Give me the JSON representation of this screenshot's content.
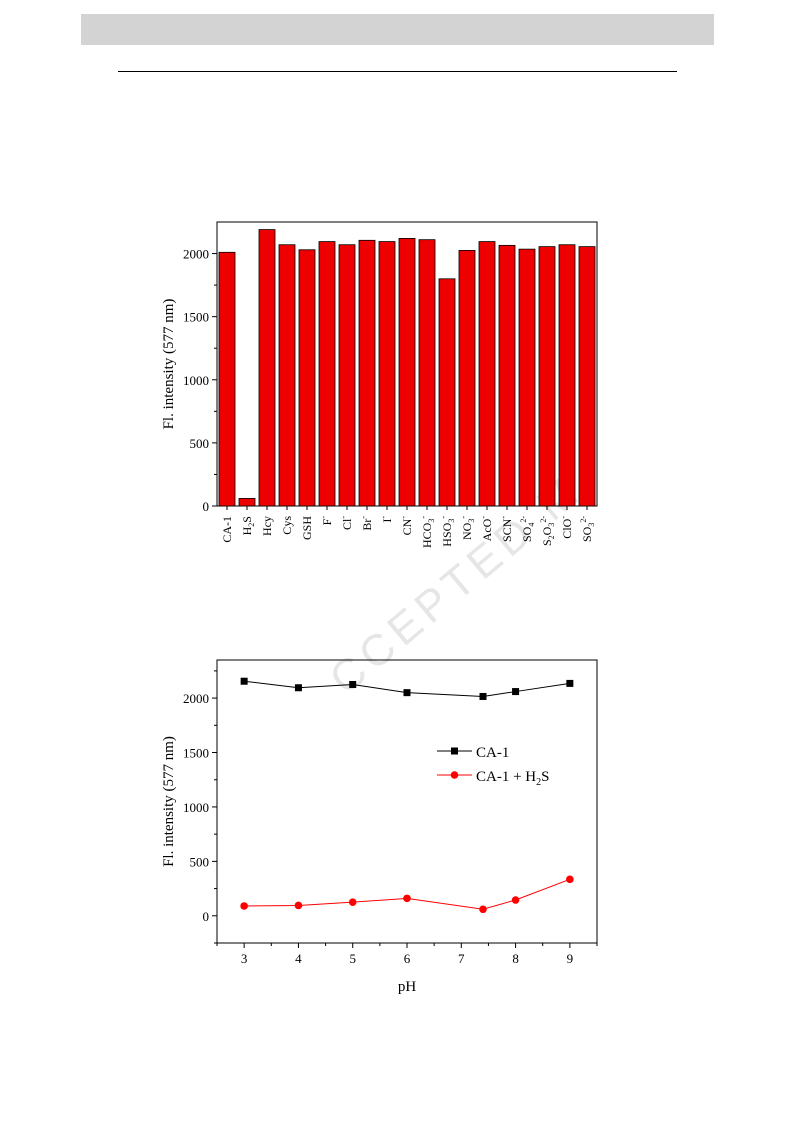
{
  "watermark": "CCEPTED M",
  "chart_data": [
    {
      "type": "bar",
      "ylabel": "Fl. intensity (577 nm)",
      "ylim": [
        0,
        2250
      ],
      "yticks": [
        0,
        500,
        1000,
        1500,
        2000
      ],
      "bar_color": "#ee0000",
      "categories": [
        {
          "base": "CA-1",
          "sub": "",
          "sup": ""
        },
        {
          "base": "H",
          "sub": "2",
          "sup": "",
          "tail": "S"
        },
        {
          "base": "Hcy",
          "sub": "",
          "sup": ""
        },
        {
          "base": "Cys",
          "sub": "",
          "sup": ""
        },
        {
          "base": "GSH",
          "sub": "",
          "sup": ""
        },
        {
          "base": "F",
          "sub": "",
          "sup": "-"
        },
        {
          "base": "Cl",
          "sub": "",
          "sup": "-"
        },
        {
          "base": "Br",
          "sub": "",
          "sup": "-"
        },
        {
          "base": "I",
          "sub": "",
          "sup": "-"
        },
        {
          "base": "CN",
          "sub": "",
          "sup": "-"
        },
        {
          "base": "HCO",
          "sub": "3",
          "sup": "-"
        },
        {
          "base": "HSO",
          "sub": "3",
          "sup": "-"
        },
        {
          "base": "NO",
          "sub": "3",
          "sup": "-"
        },
        {
          "base": "AcO",
          "sub": "",
          "sup": "-"
        },
        {
          "base": "SCN",
          "sub": "",
          "sup": "-"
        },
        {
          "base": "SO",
          "sub": "4",
          "sup": "2-"
        },
        {
          "base": "S",
          "sub": "2",
          "sup": "",
          "tail": "O",
          "tail_sub": "3",
          "tail_sup": "2-"
        },
        {
          "base": "ClO",
          "sub": "",
          "sup": "-"
        },
        {
          "base": "SO",
          "sub": "3",
          "sup": "2-"
        }
      ],
      "values": [
        2010,
        60,
        2190,
        2070,
        2030,
        2095,
        2070,
        2105,
        2095,
        2120,
        2110,
        1800,
        2025,
        2095,
        2065,
        2035,
        2055,
        2070,
        2055
      ]
    },
    {
      "type": "line",
      "xlabel": "pH",
      "ylabel": "Fl. intensity (577 nm)",
      "xlim": [
        2.5,
        9.5
      ],
      "ylim": [
        -250,
        2350
      ],
      "xticks": [
        3,
        4,
        5,
        6,
        7,
        8,
        9
      ],
      "yticks": [
        0,
        500,
        1000,
        1500,
        2000
      ],
      "series": [
        {
          "name": "CA-1",
          "name_sub": "",
          "name_tail": "",
          "color": "#000000",
          "marker": "square",
          "x": [
            3,
            4,
            5,
            6,
            7.4,
            8,
            9
          ],
          "y": [
            2155,
            2095,
            2125,
            2050,
            2015,
            2060,
            2135
          ]
        },
        {
          "name": "CA-1 + H",
          "name_sub": "2",
          "name_tail": "S",
          "color": "#ff0000",
          "marker": "circle",
          "x": [
            3,
            4,
            5,
            6,
            7.4,
            8,
            9
          ],
          "y": [
            90,
            95,
            125,
            160,
            60,
            145,
            335
          ]
        }
      ]
    }
  ]
}
